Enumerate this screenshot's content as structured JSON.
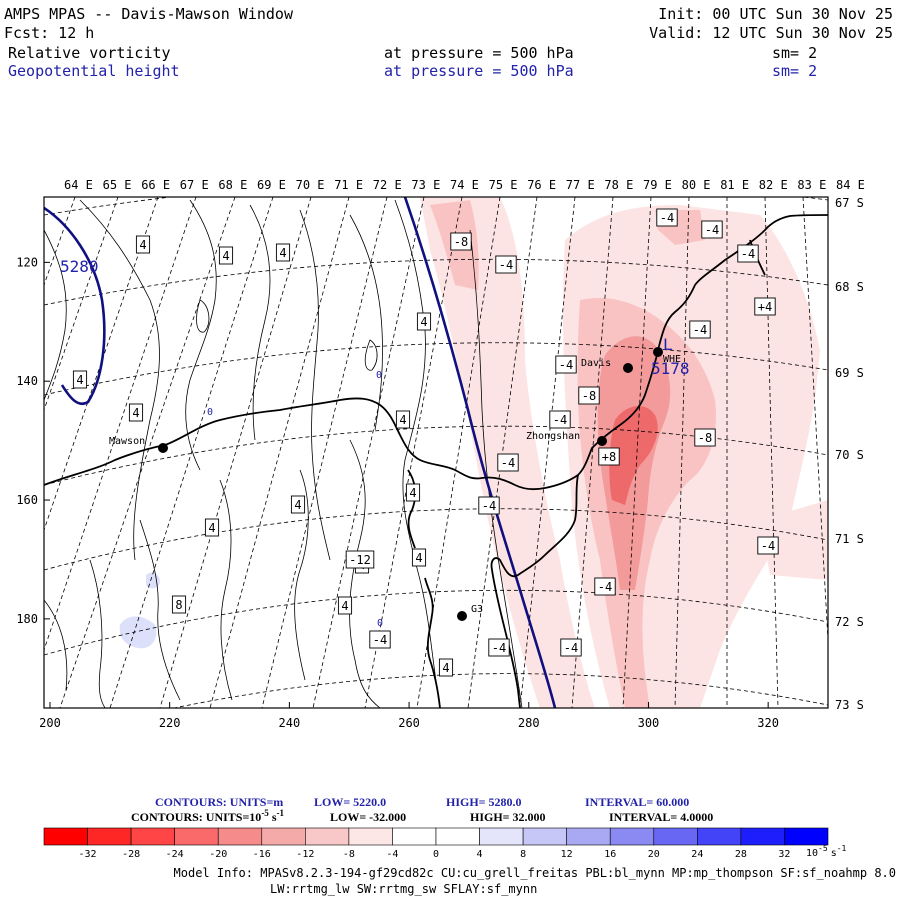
{
  "header": {
    "title": "AMPS MPAS -- Davis-Mawson Window",
    "init": "Init: 00 UTC Sun 30 Nov 25",
    "fcst": "Fcst:   12 h",
    "valid": "Valid: 12 UTC Sun 30 Nov 25",
    "field1": {
      "name": "Relative vorticity",
      "level": "at pressure =  500 hPa",
      "smooth": "sm= 2"
    },
    "field2": {
      "name": "Geopotential height",
      "level": "at pressure =  500 hPa",
      "smooth": "sm= 2"
    }
  },
  "colors": {
    "black": "#000000",
    "blue_text": "#2222aa",
    "height_contour": "#101080",
    "pink_light": "#fde4e4",
    "pink_mid": "#fac3c3",
    "pink_dark": "#f39a9a",
    "red_dark": "#ee6a6a",
    "blue_light": "#dde0fa"
  },
  "map": {
    "lon_labels": [
      "64 E",
      "65 E",
      "66 E",
      "67 E",
      "68 E",
      "69 E",
      "70 E",
      "71 E",
      "72 E",
      "73 E",
      "74 E",
      "75 E",
      "76 E",
      "77 E",
      "78 E",
      "79 E",
      "80 E",
      "81 E",
      "82 E",
      "83 E",
      "84 E"
    ],
    "lat_labels": [
      "67 S",
      "68 S",
      "69 S",
      "70 S",
      "71 S",
      "72 S",
      "73 S"
    ],
    "x_ticks": [
      "200",
      "220",
      "240",
      "260",
      "280",
      "300",
      "320"
    ],
    "y_ticks": [
      "120",
      "140",
      "160",
      "180"
    ],
    "stations": [
      {
        "name": "Mawson"
      },
      {
        "name": "Davis"
      },
      {
        "name": "WHE"
      },
      {
        "name": "Zhongshan"
      },
      {
        "name": "G3"
      }
    ],
    "height_labels": [
      "5280",
      "5178"
    ],
    "vort_labels": [
      "4",
      "4",
      "4",
      "4",
      "4",
      "4",
      "4",
      "4",
      "4",
      "4",
      "4",
      "4",
      "4",
      "4",
      "8",
      "-8",
      "-4",
      "-4",
      "-4",
      "-4",
      "-4",
      "-4",
      "-4",
      "-8",
      "-4",
      "+4",
      "-4",
      "-4",
      "-4",
      "-8",
      "+8",
      "-12",
      "-4",
      "-4",
      "-4"
    ],
    "misc_labels": [
      "0",
      "0",
      "0"
    ]
  },
  "contour_info": {
    "line1": {
      "label": "CONTOURS:  UNITS=m",
      "low": "LOW=   5220.0",
      "high": "HIGH=  5280.0",
      "interval": "INTERVAL=   60.000"
    },
    "line2": {
      "label": "CONTOURS:  UNITS=10",
      "exp": "-5",
      "unit": "s",
      "unit_exp": "-1",
      "low": "LOW=  -32.000",
      "high": "HIGH=   32.000",
      "interval": "INTERVAL=    4.0000"
    }
  },
  "colorbar": {
    "colors": [
      "#ff0000",
      "#ff2626",
      "#ff4545",
      "#fa6a6a",
      "#f58b8b",
      "#f5aaaa",
      "#f8c8c8",
      "#fde6e6",
      "#ffffff",
      "#ffffff",
      "#e4e4fb",
      "#c6c6f7",
      "#a8a8f3",
      "#8a8af2",
      "#6767f4",
      "#4343f8",
      "#1e1efc",
      "#0000ff"
    ],
    "ticks": [
      "-32",
      "-28",
      "-24",
      "-20",
      "-16",
      "-12",
      "-8",
      "-4",
      "0",
      "4",
      "8",
      "12",
      "16",
      "20",
      "24",
      "28",
      "32"
    ],
    "unit_base": "10",
    "unit_exp": "-5",
    "unit_s": "s",
    "unit_s_exp": "-1"
  },
  "footer": {
    "line1": "Model Info: MPASv8.2.3-194-gf29cd82c CU:cu_grell_freitas PBL:bl_mynn MP:mp_thompson SF:sf_noahmp 8.0",
    "line2": "LW:rrtmg_lw SW:rrtmg_sw SFLAY:sf_mynn"
  }
}
